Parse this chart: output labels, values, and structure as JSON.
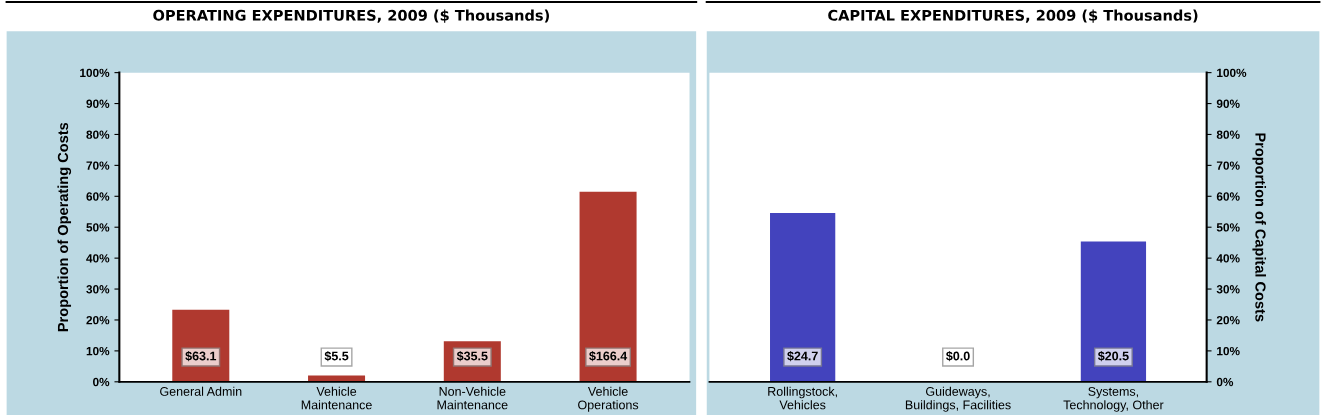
{
  "chart_data": [
    {
      "type": "bar",
      "title": "OPERATING EXPENDITURES, 2009 ($ Thousands)",
      "ylabel": "Proportion of Operating Costs",
      "categories": [
        "General Admin",
        "Vehicle\nMaintenance",
        "Non-Vehicle\nMaintenance",
        "Vehicle\nOperations"
      ],
      "values": [
        23.3,
        2.0,
        13.1,
        61.5
      ],
      "color": "#b0392f",
      "ylim": [
        0,
        100
      ],
      "yticks": [
        {
          "value": 0,
          "label": "0%"
        },
        {
          "value": 10,
          "label": "10%"
        },
        {
          "value": 20,
          "label": "20%"
        },
        {
          "value": 30,
          "label": "30%"
        },
        {
          "value": 40,
          "label": "40%"
        },
        {
          "value": 50,
          "label": "50%"
        },
        {
          "value": 60,
          "label": "60%"
        },
        {
          "value": 70,
          "label": "70%"
        },
        {
          "value": 80,
          "label": "80%"
        },
        {
          "value": 90,
          "label": "90%"
        },
        {
          "value": 100,
          "label": "100%"
        }
      ],
      "annotations": [
        "$63.1",
        "$5.5",
        "$35.5",
        "$166.4"
      ]
    },
    {
      "type": "bar",
      "title": "CAPITAL EXPENDITURES, 2009 ($ Thousands)",
      "ylabel": "Proportion of Capital Costs",
      "categories": [
        "Rollingstock,\nVehicles",
        "Guideways,\nBuildings, Facilities",
        "Systems,\nTechnology, Other"
      ],
      "values": [
        54.6,
        0.0,
        45.4
      ],
      "color": "#4343bd",
      "ylim": [
        0,
        100
      ],
      "yticks": [
        {
          "value": 0,
          "label": "0%"
        },
        {
          "value": 10,
          "label": "10%"
        },
        {
          "value": 20,
          "label": "20%"
        },
        {
          "value": 30,
          "label": "30%"
        },
        {
          "value": 40,
          "label": "40%"
        },
        {
          "value": 50,
          "label": "50%"
        },
        {
          "value": 60,
          "label": "60%"
        },
        {
          "value": 70,
          "label": "70%"
        },
        {
          "value": 80,
          "label": "80%"
        },
        {
          "value": 90,
          "label": "90%"
        },
        {
          "value": 100,
          "label": "100%"
        }
      ],
      "annotations": [
        "$24.7",
        "$0.0",
        "$20.5"
      ]
    }
  ]
}
